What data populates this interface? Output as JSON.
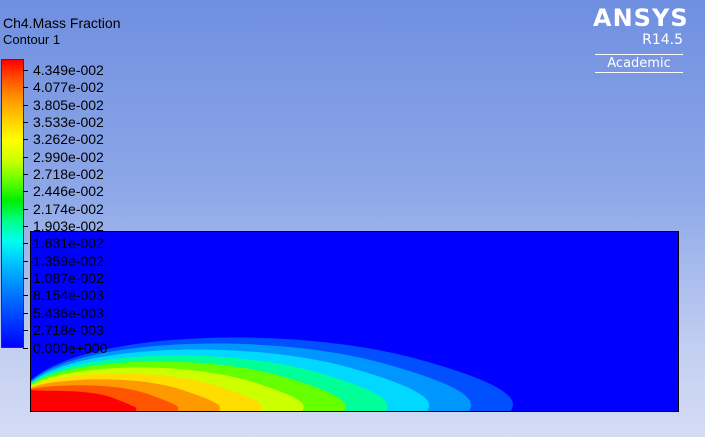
{
  "plot": {
    "title": "Ch4.Mass Fraction",
    "subtitle": "Contour 1"
  },
  "logo": {
    "brand": "ANSYS",
    "release": "R14.5",
    "edition": "Academic"
  },
  "legend": {
    "labels": [
      "4.349e-002",
      "4.077e-002",
      "3.805e-002",
      "3.533e-002",
      "3.262e-002",
      "2.990e-002",
      "2.718e-002",
      "2.446e-002",
      "2.174e-002",
      "1.903e-002",
      "1.631e-002",
      "1.359e-002",
      "1.087e-002",
      "8.154e-003",
      "5.436e-003",
      "2.718e-003",
      "0.000e+000"
    ],
    "colors_top_to_bottom": [
      "#ff0000",
      "#ff9900",
      "#ffff00",
      "#66ff00",
      "#00ee00",
      "#00ffee",
      "#0096ff",
      "#0000ff"
    ]
  },
  "contour": {
    "background_color": "#0000ff",
    "band_colors": [
      "#0050ff",
      "#0096ff",
      "#00d8ff",
      "#00ff99",
      "#66ff00",
      "#ccff00",
      "#ffdd00",
      "#ff9900",
      "#ff5500",
      "#ff0000"
    ]
  }
}
